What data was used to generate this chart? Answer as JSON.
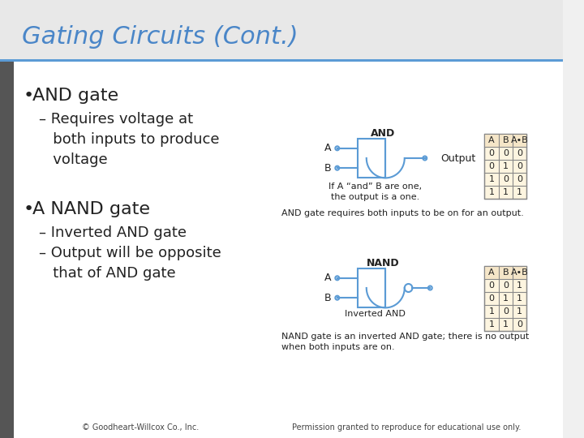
{
  "title": "Gating Circuits (Cont.)",
  "title_color": "#4a86c8",
  "title_italic": true,
  "bg_color": "#f0f0f0",
  "content_bg": "#ffffff",
  "left_bar_color": "#808080",
  "gate_color": "#5b9bd5",
  "table_header_bg": "#f5e6c8",
  "table_body_bg": "#fdf5e0",
  "table_border_color": "#888888",
  "bullet1": "AND gate",
  "sub1a": "– Requires voltage at\n   both inputs to produce\n   voltage",
  "bullet2": "A NAND gate",
  "sub2a": "– Inverted AND gate",
  "sub2b": "– Output will be opposite\n   that of AND gate",
  "and_label": "AND",
  "and_caption": "If A “and” B are one,\nthe output is a one.",
  "and_note": "AND gate requires both inputs to be on for an output.",
  "and_output_label": "Output",
  "nand_label": "NAND",
  "nand_caption": "Inverted AND",
  "nand_note": "NAND gate is an inverted AND gate; there is no output\nwhen both inputs are on.",
  "and_table_headers": [
    "A",
    "B",
    "A•B"
  ],
  "and_table_rows": [
    [
      "0",
      "0",
      "0"
    ],
    [
      "0",
      "1",
      "0"
    ],
    [
      "1",
      "0",
      "0"
    ],
    [
      "1",
      "1",
      "1"
    ]
  ],
  "nand_table_headers": [
    "A",
    "B",
    "A•B"
  ],
  "nand_table_rows": [
    [
      "0",
      "0",
      "1"
    ],
    [
      "0",
      "1",
      "1"
    ],
    [
      "1",
      "0",
      "1"
    ],
    [
      "1",
      "1",
      "0"
    ]
  ],
  "footer_left": "© Goodheart-Willcox Co., Inc.",
  "footer_right": "Permission granted to reproduce for educational use only."
}
